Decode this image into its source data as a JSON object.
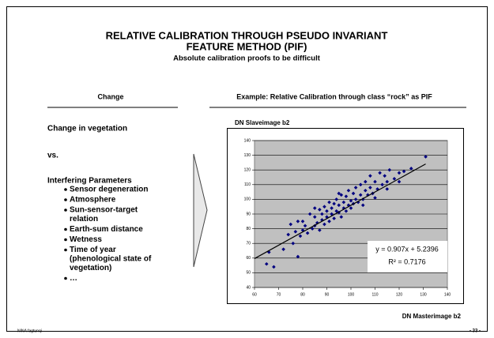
{
  "slide": {
    "title_lines": [
      "RELATIVE CALIBRATION THROUGH PSEUDO INVARIANT",
      "FEATURE METHOD (PIF)"
    ],
    "subtitle": "Absolute calibration proofs to be difficult",
    "left_header": "Change",
    "right_header": "Example: Relative Calibration through class “rock” as PIF",
    "left_lines": [
      "Change in vegetation",
      "vs.",
      "Interfering  Parameters"
    ],
    "bullets": [
      [
        "Sensor degeneration"
      ],
      [
        "Atmosphere"
      ],
      [
        "Sun-sensor-target",
        "relation"
      ],
      [
        "Earth-sum distance"
      ],
      [
        "Wetness"
      ],
      [
        "Time of year",
        "(phenological state of",
        "vegetation)"
      ],
      [
        "…"
      ]
    ],
    "footer_left": "NINA fagtunqi",
    "footer_right": "- 33 -"
  },
  "chart_data": {
    "type": "scatter",
    "y_label": "DN Slaveimage b2",
    "x_label": "DN Masterimage b2",
    "color": "#000080",
    "plot_bg": "#c0c0c0",
    "grid": true,
    "xlim": [
      60,
      140
    ],
    "ylim": [
      40,
      140
    ],
    "xticks": [
      60,
      70,
      80,
      90,
      100,
      110,
      120,
      130,
      140
    ],
    "yticks": [
      40,
      50,
      60,
      70,
      80,
      90,
      100,
      110,
      120,
      130,
      140
    ],
    "x": [
      65,
      68,
      66,
      72,
      74,
      75,
      76,
      77,
      78,
      79,
      80,
      80,
      81,
      82,
      83,
      84,
      85,
      85,
      86,
      87,
      87,
      88,
      88,
      89,
      89,
      90,
      90,
      91,
      91,
      92,
      92,
      93,
      93,
      94,
      94,
      95,
      95,
      96,
      96,
      97,
      97,
      98,
      98,
      99,
      99,
      100,
      100,
      101,
      101,
      102,
      102,
      103,
      104,
      104,
      105,
      106,
      106,
      107,
      108,
      108,
      109,
      110,
      111,
      112,
      113,
      114,
      115,
      116,
      118,
      120,
      122,
      125,
      131,
      78,
      85,
      95,
      105,
      115,
      110,
      120
    ],
    "y": [
      56,
      54,
      64,
      66,
      76,
      83,
      70,
      78,
      61,
      75,
      79,
      85,
      82,
      77,
      90,
      80,
      88,
      82,
      84,
      93,
      79,
      86,
      90,
      83,
      95,
      88,
      92,
      85,
      98,
      90,
      94,
      87,
      97,
      92,
      100,
      91,
      96,
      88,
      103,
      94,
      98,
      92,
      102,
      96,
      106,
      94,
      99,
      104,
      97,
      100,
      108,
      98,
      103,
      110,
      100,
      106,
      112,
      103,
      108,
      116,
      104,
      112,
      107,
      118,
      110,
      116,
      112,
      120,
      114,
      118,
      119,
      121,
      129,
      85,
      94,
      104,
      96,
      107,
      101,
      112
    ],
    "trendline": {
      "slope": 0.907,
      "intercept": 5.2396,
      "xrange": [
        60,
        131
      ],
      "color": "#000000"
    },
    "equation": "y = 0.907x + 5.2396",
    "r2": "R² = 0.7176"
  }
}
